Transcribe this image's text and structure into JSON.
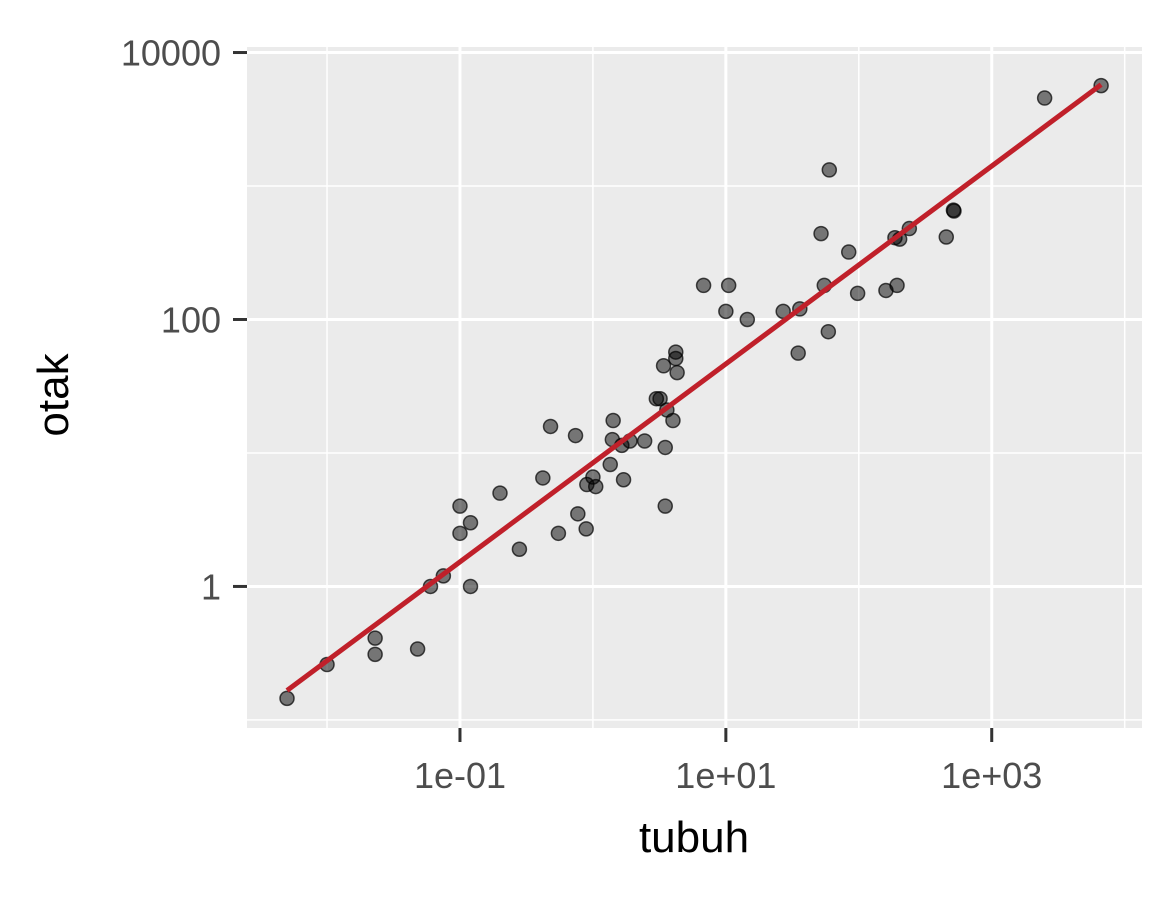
{
  "chart_data": {
    "type": "scatter",
    "x_label": "tubuh",
    "y_label": "otak",
    "log_x": true,
    "log_y": true,
    "grid": true,
    "xlim": [
      0.0025,
      13500
    ],
    "ylim": [
      0.087,
      11000
    ],
    "xticks": [
      {
        "value": 0.1,
        "label": "1e-01"
      },
      {
        "value": 10,
        "label": "1e+01"
      },
      {
        "value": 1000,
        "label": "1e+03"
      }
    ],
    "yticks": [
      1,
      100,
      10000
    ],
    "x_minor_grid": [
      0.01,
      1,
      100,
      10000
    ],
    "y_minor_grid": [
      0.1,
      10,
      1000
    ],
    "point_color": "#000000",
    "point_opacity": 0.5,
    "x": [
      0.005,
      0.01,
      0.023,
      0.023,
      0.048,
      0.06,
      0.075,
      0.12,
      0.1,
      0.1,
      0.12,
      0.2,
      0.28,
      0.42,
      0.48,
      0.55,
      0.74,
      0.77,
      0.89,
      0.9,
      1.0,
      1.05,
      1.35,
      1.4,
      1.42,
      1.65,
      1.7,
      1.9,
      2.45,
      3.0,
      3.2,
      3.4,
      3.5,
      3.5,
      3.6,
      4.0,
      4.2,
      4.3,
      4.2,
      6.8,
      10,
      10.5,
      14.5,
      27,
      35,
      36,
      52,
      55,
      59,
      60,
      84,
      98,
      160,
      187,
      194,
      203,
      240,
      455,
      515,
      520,
      2500,
      6650
    ],
    "y": [
      0.145,
      0.26,
      0.41,
      0.31,
      0.34,
      1.0,
      1.2,
      1.0,
      4.0,
      2.5,
      3.0,
      5.0,
      1.9,
      6.5,
      15.8,
      2.5,
      13.5,
      3.5,
      2.7,
      5.8,
      6.6,
      5.6,
      8.2,
      12.6,
      17.5,
      11.4,
      6.3,
      12.3,
      12.3,
      25.5,
      25.5,
      45,
      11,
      4.0,
      21,
      17.5,
      57,
      40,
      51,
      180,
      115,
      180,
      100,
      115,
      56,
      120,
      440,
      180,
      81,
      1320,
      320,
      157,
      165,
      410,
      180,
      400,
      480,
      415,
      660,
      650,
      4560,
      5650
    ],
    "fit": {
      "type": "line",
      "color": "#c0202a",
      "x": [
        0.005,
        6650
      ],
      "y": [
        0.166,
        5750
      ]
    }
  }
}
